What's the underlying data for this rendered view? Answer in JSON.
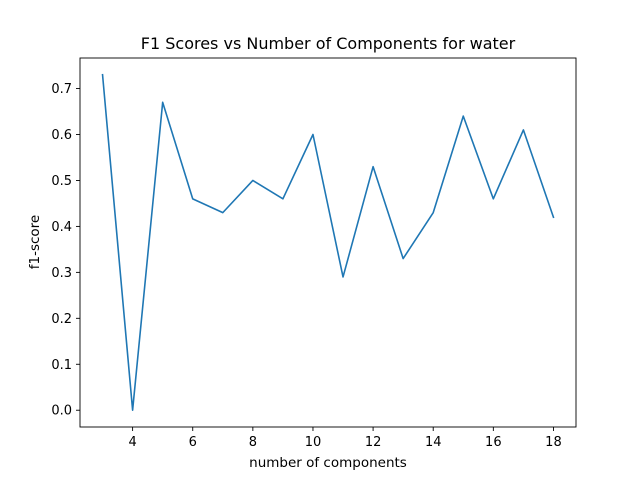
{
  "chart_data": {
    "type": "line",
    "title": "F1 Scores vs Number of Components for water",
    "xlabel": "number of components",
    "ylabel": "f1-score",
    "xlim": [
      2.25,
      18.75
    ],
    "ylim": [
      -0.0365,
      0.7665
    ],
    "x_ticks": [
      4,
      6,
      8,
      10,
      12,
      14,
      16,
      18
    ],
    "y_ticks": [
      0.0,
      0.1,
      0.2,
      0.3,
      0.4,
      0.5,
      0.6,
      0.7
    ],
    "y_tick_labels": [
      "0.0",
      "0.1",
      "0.2",
      "0.3",
      "0.4",
      "0.5",
      "0.6",
      "0.7"
    ],
    "grid": false,
    "legend": "none",
    "series": [
      {
        "color": "#1f77b4",
        "x": [
          3,
          4,
          5,
          6,
          7,
          8,
          9,
          10,
          11,
          12,
          13,
          14,
          15,
          16,
          17,
          18
        ],
        "y": [
          0.73,
          0.0,
          0.67,
          0.46,
          0.43,
          0.5,
          0.46,
          0.6,
          0.29,
          0.53,
          0.33,
          0.43,
          0.64,
          0.46,
          0.61,
          0.42
        ]
      }
    ]
  }
}
